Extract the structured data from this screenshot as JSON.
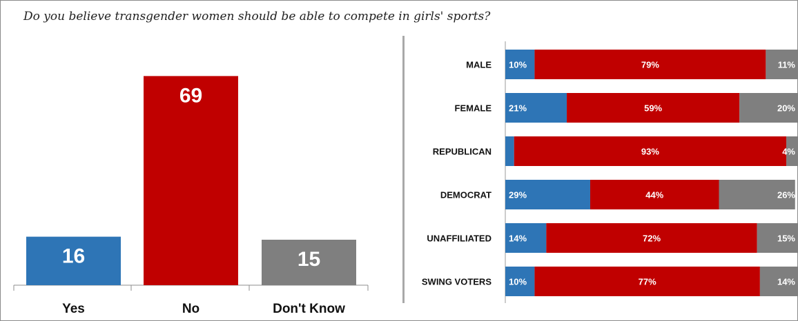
{
  "question": "Do you believe transgender women should be able to compete in girls' sports?",
  "colors": {
    "yes": "#2e75b6",
    "no": "#c00000",
    "dont_know": "#7f7f7f"
  },
  "chart_data": [
    {
      "type": "bar",
      "categories": [
        "Yes",
        "No",
        "Don't Know"
      ],
      "values": [
        16,
        69,
        15
      ],
      "value_labels": [
        "16",
        "69",
        "15"
      ],
      "ylim": [
        0,
        75
      ]
    },
    {
      "type": "bar",
      "orientation": "horizontal",
      "stacked": true,
      "categories": [
        "MALE",
        "FEMALE",
        "REPUBLICAN",
        "DEMOCRAT",
        "UNAFFILIATED",
        "SWING VOTERS"
      ],
      "series": [
        {
          "values": [
            10,
            21,
            3,
            29,
            14,
            10
          ],
          "labels": [
            "10%",
            "21%",
            "",
            "29%",
            "14%",
            "10%"
          ]
        },
        {
          "values": [
            79,
            59,
            93,
            44,
            72,
            77
          ],
          "labels": [
            "79%",
            "59%",
            "93%",
            "44%",
            "72%",
            "77%"
          ]
        },
        {
          "values": [
            11,
            20,
            4,
            26,
            15,
            14
          ],
          "labels": [
            "11%",
            "20%",
            "4%",
            "26%",
            "15%",
            "14%"
          ]
        }
      ],
      "xlim": [
        0,
        100
      ]
    }
  ]
}
